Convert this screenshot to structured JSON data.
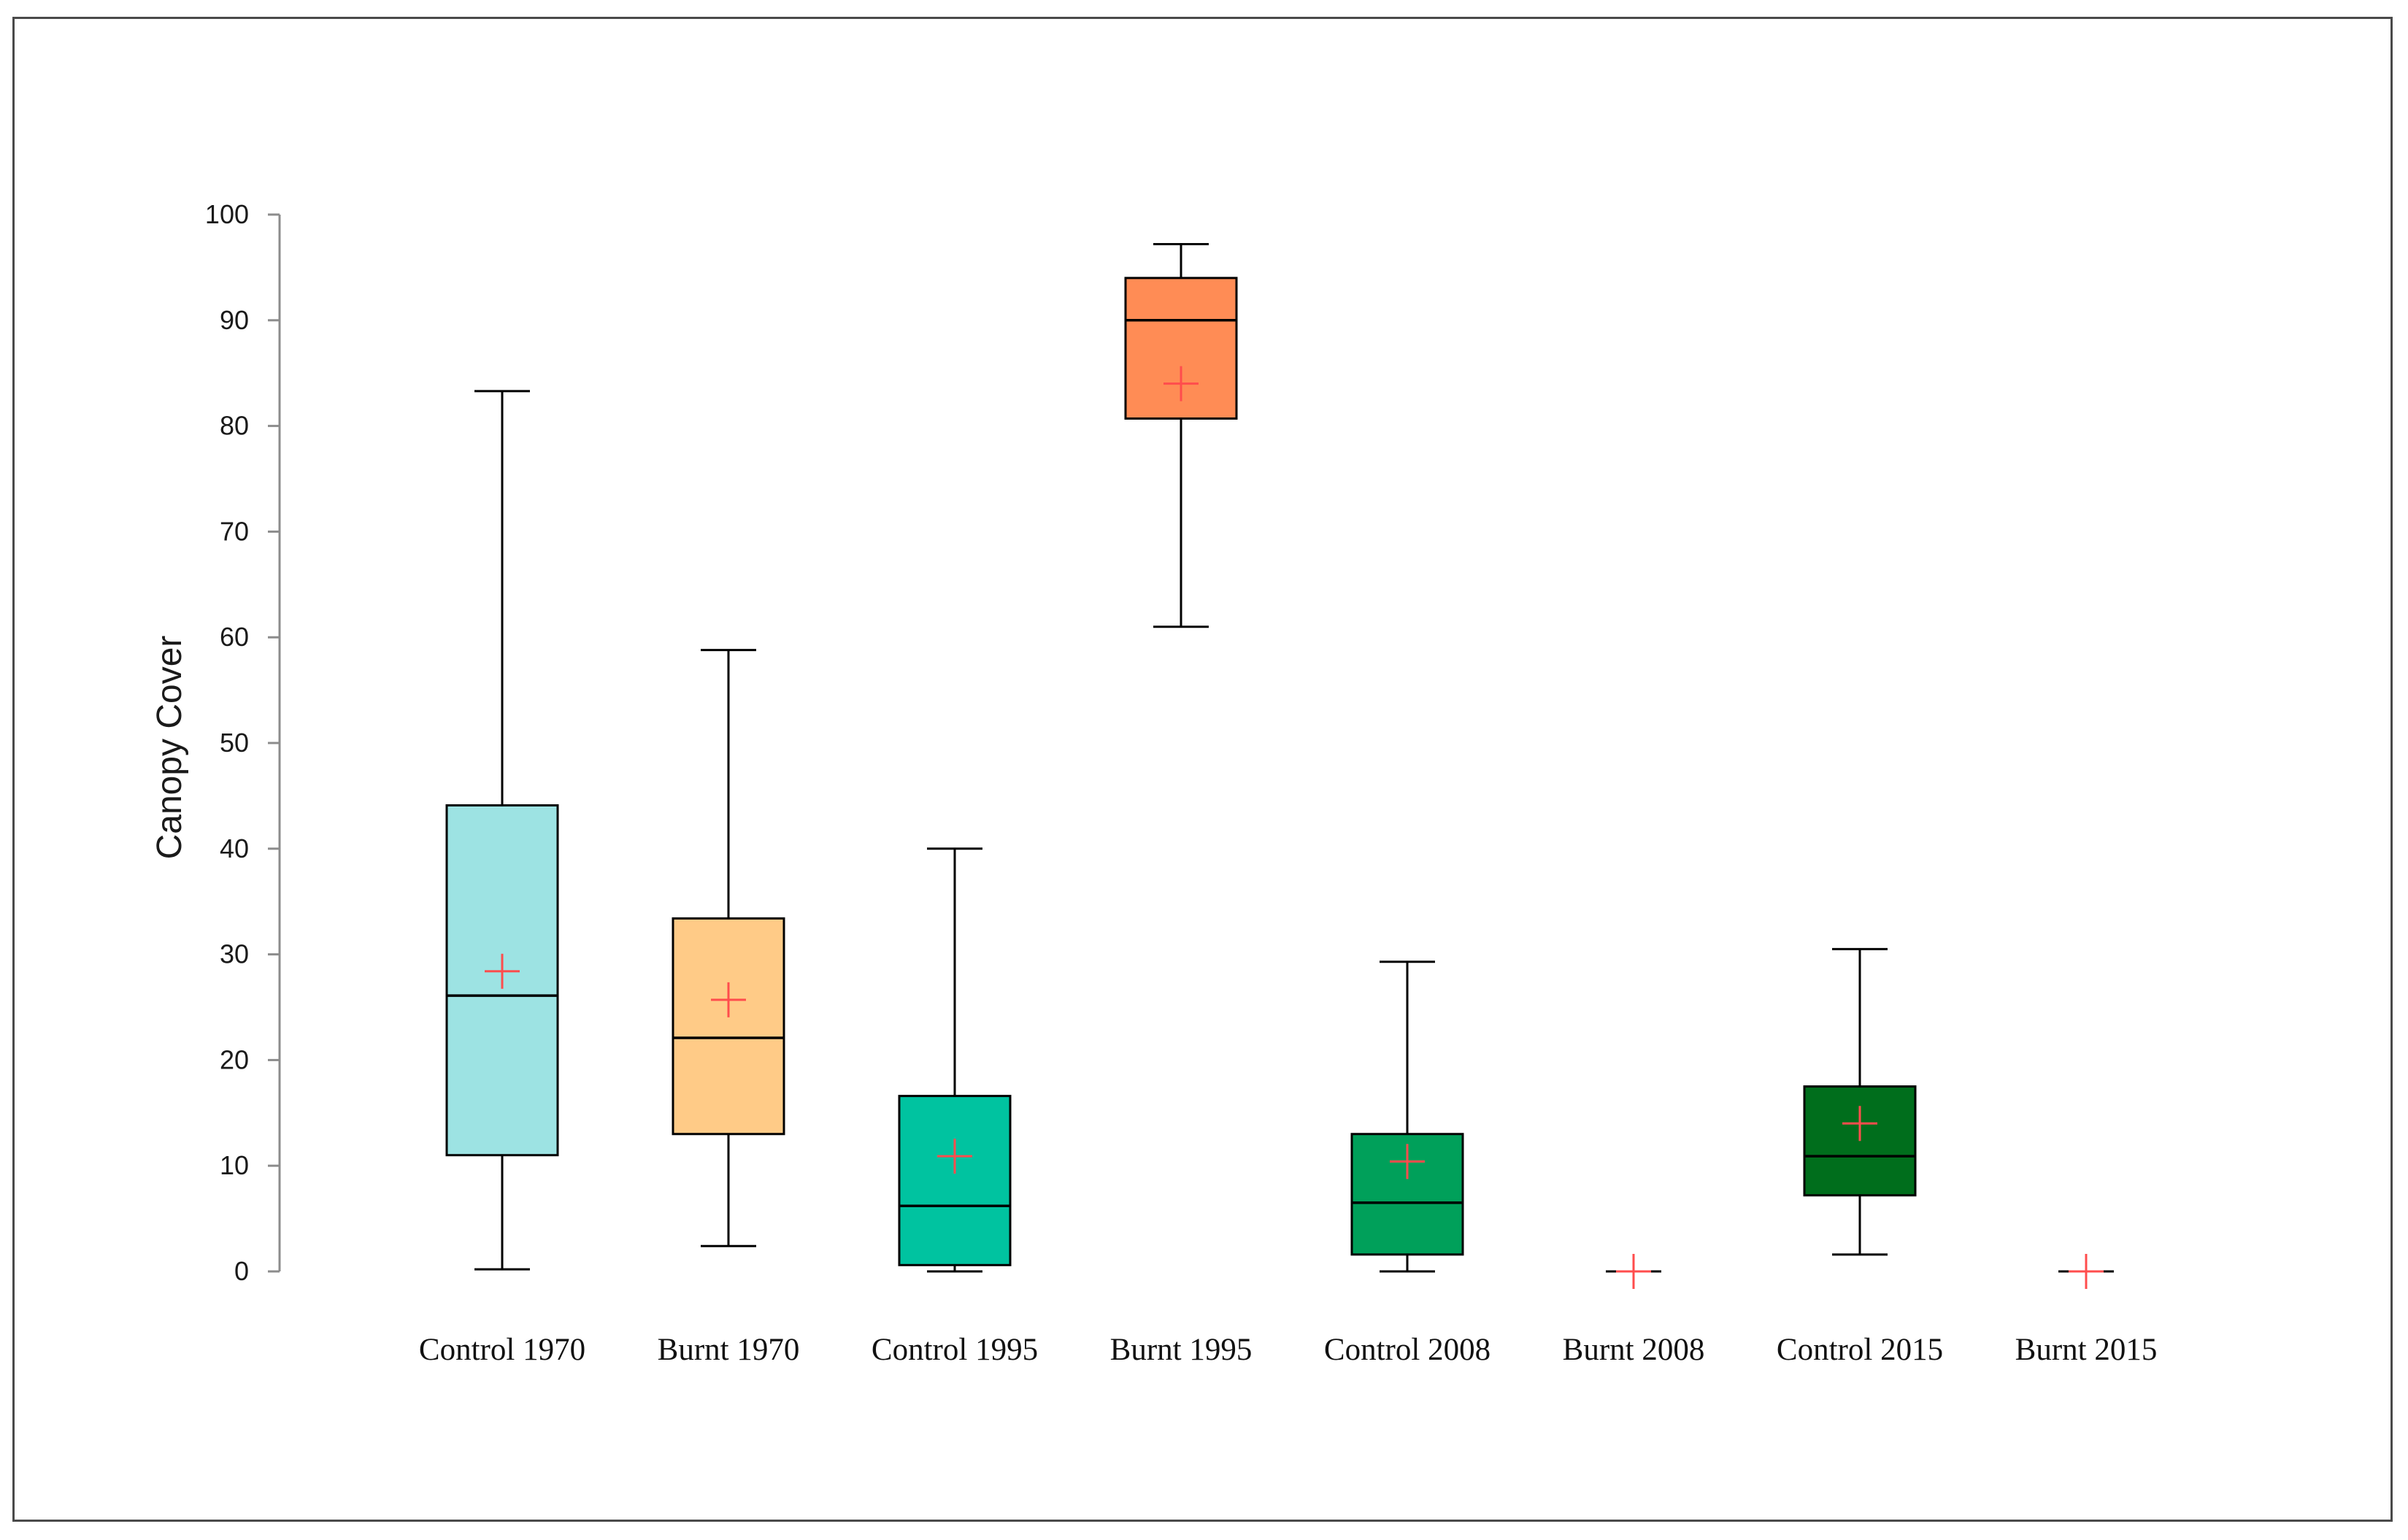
{
  "chart_data": {
    "type": "boxplot",
    "title": "",
    "xlabel": "",
    "ylabel": "Canopy Cover",
    "ylim": [
      0,
      100
    ],
    "yticks": [
      0,
      10,
      20,
      30,
      40,
      50,
      60,
      70,
      80,
      90,
      100
    ],
    "grid": false,
    "legend": "none",
    "mean_marker": "+",
    "mean_color": "#ff4d4d",
    "categories": [
      "Control 1970",
      "Burnt 1970",
      "Control 1995",
      "Burnt 1995",
      "Control 2008",
      "Burnt 2008",
      "Control 2015",
      "Burnt 2015"
    ],
    "boxes": [
      {
        "label": "Control 1970",
        "min": 0.2,
        "q1": 11.0,
        "median": 26.1,
        "q3": 44.1,
        "max": 83.3,
        "mean": 28.4,
        "color": "#9de3e3"
      },
      {
        "label": "Burnt 1970",
        "min": 2.4,
        "q1": 13.0,
        "median": 22.1,
        "q3": 33.4,
        "max": 58.8,
        "mean": 25.7,
        "color": "#ffcb87"
      },
      {
        "label": "Control 1995",
        "min": 0.0,
        "q1": 0.6,
        "median": 6.2,
        "q3": 16.6,
        "max": 40.0,
        "mean": 10.9,
        "color": "#00c3a0"
      },
      {
        "label": "Burnt 1995",
        "min": 61.0,
        "q1": 80.7,
        "median": 90.0,
        "q3": 94.0,
        "max": 97.2,
        "mean": 84.0,
        "color": "#ff8c55"
      },
      {
        "label": "Control 2008",
        "min": 0.0,
        "q1": 1.6,
        "median": 6.5,
        "q3": 13.0,
        "max": 29.3,
        "mean": 10.4,
        "color": "#00a05a"
      },
      {
        "label": "Burnt 2008",
        "min": 0.0,
        "q1": 0.0,
        "median": 0.0,
        "q3": 0.0,
        "max": 0.0,
        "mean": 0.0,
        "color": "#006e28"
      },
      {
        "label": "Control 2015",
        "min": 1.6,
        "q1": 7.2,
        "median": 10.9,
        "q3": 17.5,
        "max": 30.5,
        "mean": 14.0,
        "color": "#006e1c"
      },
      {
        "label": "Burnt 2015",
        "min": 0.0,
        "q1": 0.0,
        "median": 0.0,
        "q3": 0.0,
        "max": 0.0,
        "mean": 0.0,
        "color": "#004d14"
      }
    ]
  }
}
